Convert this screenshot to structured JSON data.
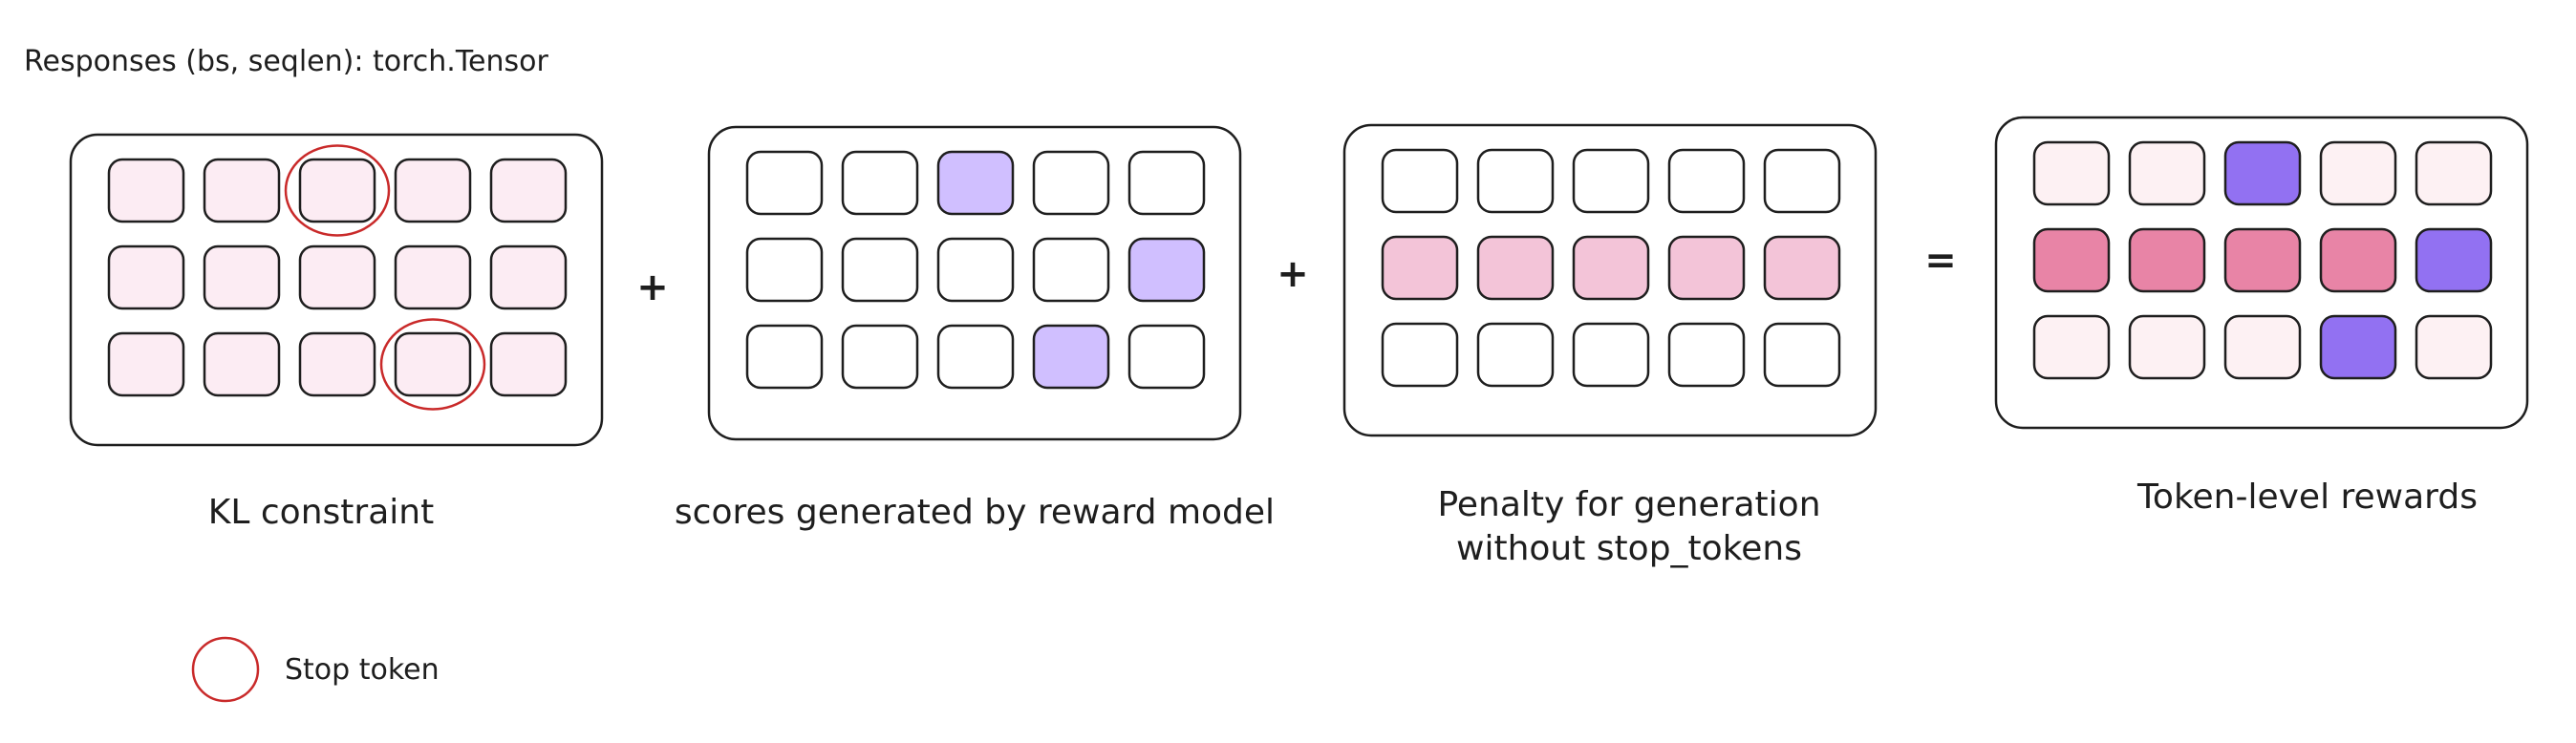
{
  "header": {
    "title": "Responses (bs, seqlen): torch.Tensor"
  },
  "operators": {
    "plus1": "+",
    "plus2": "+",
    "equals": "="
  },
  "panels": [
    {
      "id": "kl",
      "caption_lines": [
        "KL constraint"
      ],
      "cell_colors": [
        [
          "#fcecf3",
          "#fcecf3",
          "#fcecf3",
          "#fcecf3",
          "#fcecf3"
        ],
        [
          "#fcecf3",
          "#fcecf3",
          "#fcecf3",
          "#fcecf3",
          "#fcecf3"
        ],
        [
          "#fcecf3",
          "#fcecf3",
          "#fcecf3",
          "#fcecf3",
          "#fcecf3"
        ]
      ],
      "stop_tokens": [
        [
          0,
          2
        ],
        [
          2,
          3
        ]
      ]
    },
    {
      "id": "scores",
      "caption_lines": [
        "scores generated by reward model"
      ],
      "cell_colors": [
        [
          "#ffffff",
          "#ffffff",
          "#d0bfff",
          "#ffffff",
          "#ffffff"
        ],
        [
          "#ffffff",
          "#ffffff",
          "#ffffff",
          "#ffffff",
          "#d0bfff"
        ],
        [
          "#ffffff",
          "#ffffff",
          "#ffffff",
          "#d0bfff",
          "#ffffff"
        ]
      ],
      "stop_tokens": []
    },
    {
      "id": "penalty",
      "caption_lines": [
        "Penalty for generation",
        "without stop_tokens"
      ],
      "cell_colors": [
        [
          "#ffffff",
          "#ffffff",
          "#ffffff",
          "#ffffff",
          "#ffffff"
        ],
        [
          "#f3c4d8",
          "#f3c4d8",
          "#f3c4d8",
          "#f3c4d8",
          "#f3c4d8"
        ],
        [
          "#ffffff",
          "#ffffff",
          "#ffffff",
          "#ffffff",
          "#ffffff"
        ]
      ],
      "stop_tokens": []
    },
    {
      "id": "token-rewards",
      "caption_lines": [
        "Token-level rewards"
      ],
      "cell_colors": [
        [
          "#fdf1f3",
          "#fdf1f3",
          "#9271f2",
          "#fdf1f3",
          "#fdf1f3"
        ],
        [
          "#e884a6",
          "#e884a6",
          "#e884a6",
          "#e884a6",
          "#9271f2"
        ],
        [
          "#fdf1f3",
          "#fdf1f3",
          "#fdf1f3",
          "#9271f2",
          "#fdf1f3"
        ]
      ],
      "stop_tokens": []
    }
  ],
  "legend": {
    "label": "Stop token"
  },
  "colors": {
    "stroke": "#1e1e1e",
    "stop_circle": "#c92a2a"
  }
}
